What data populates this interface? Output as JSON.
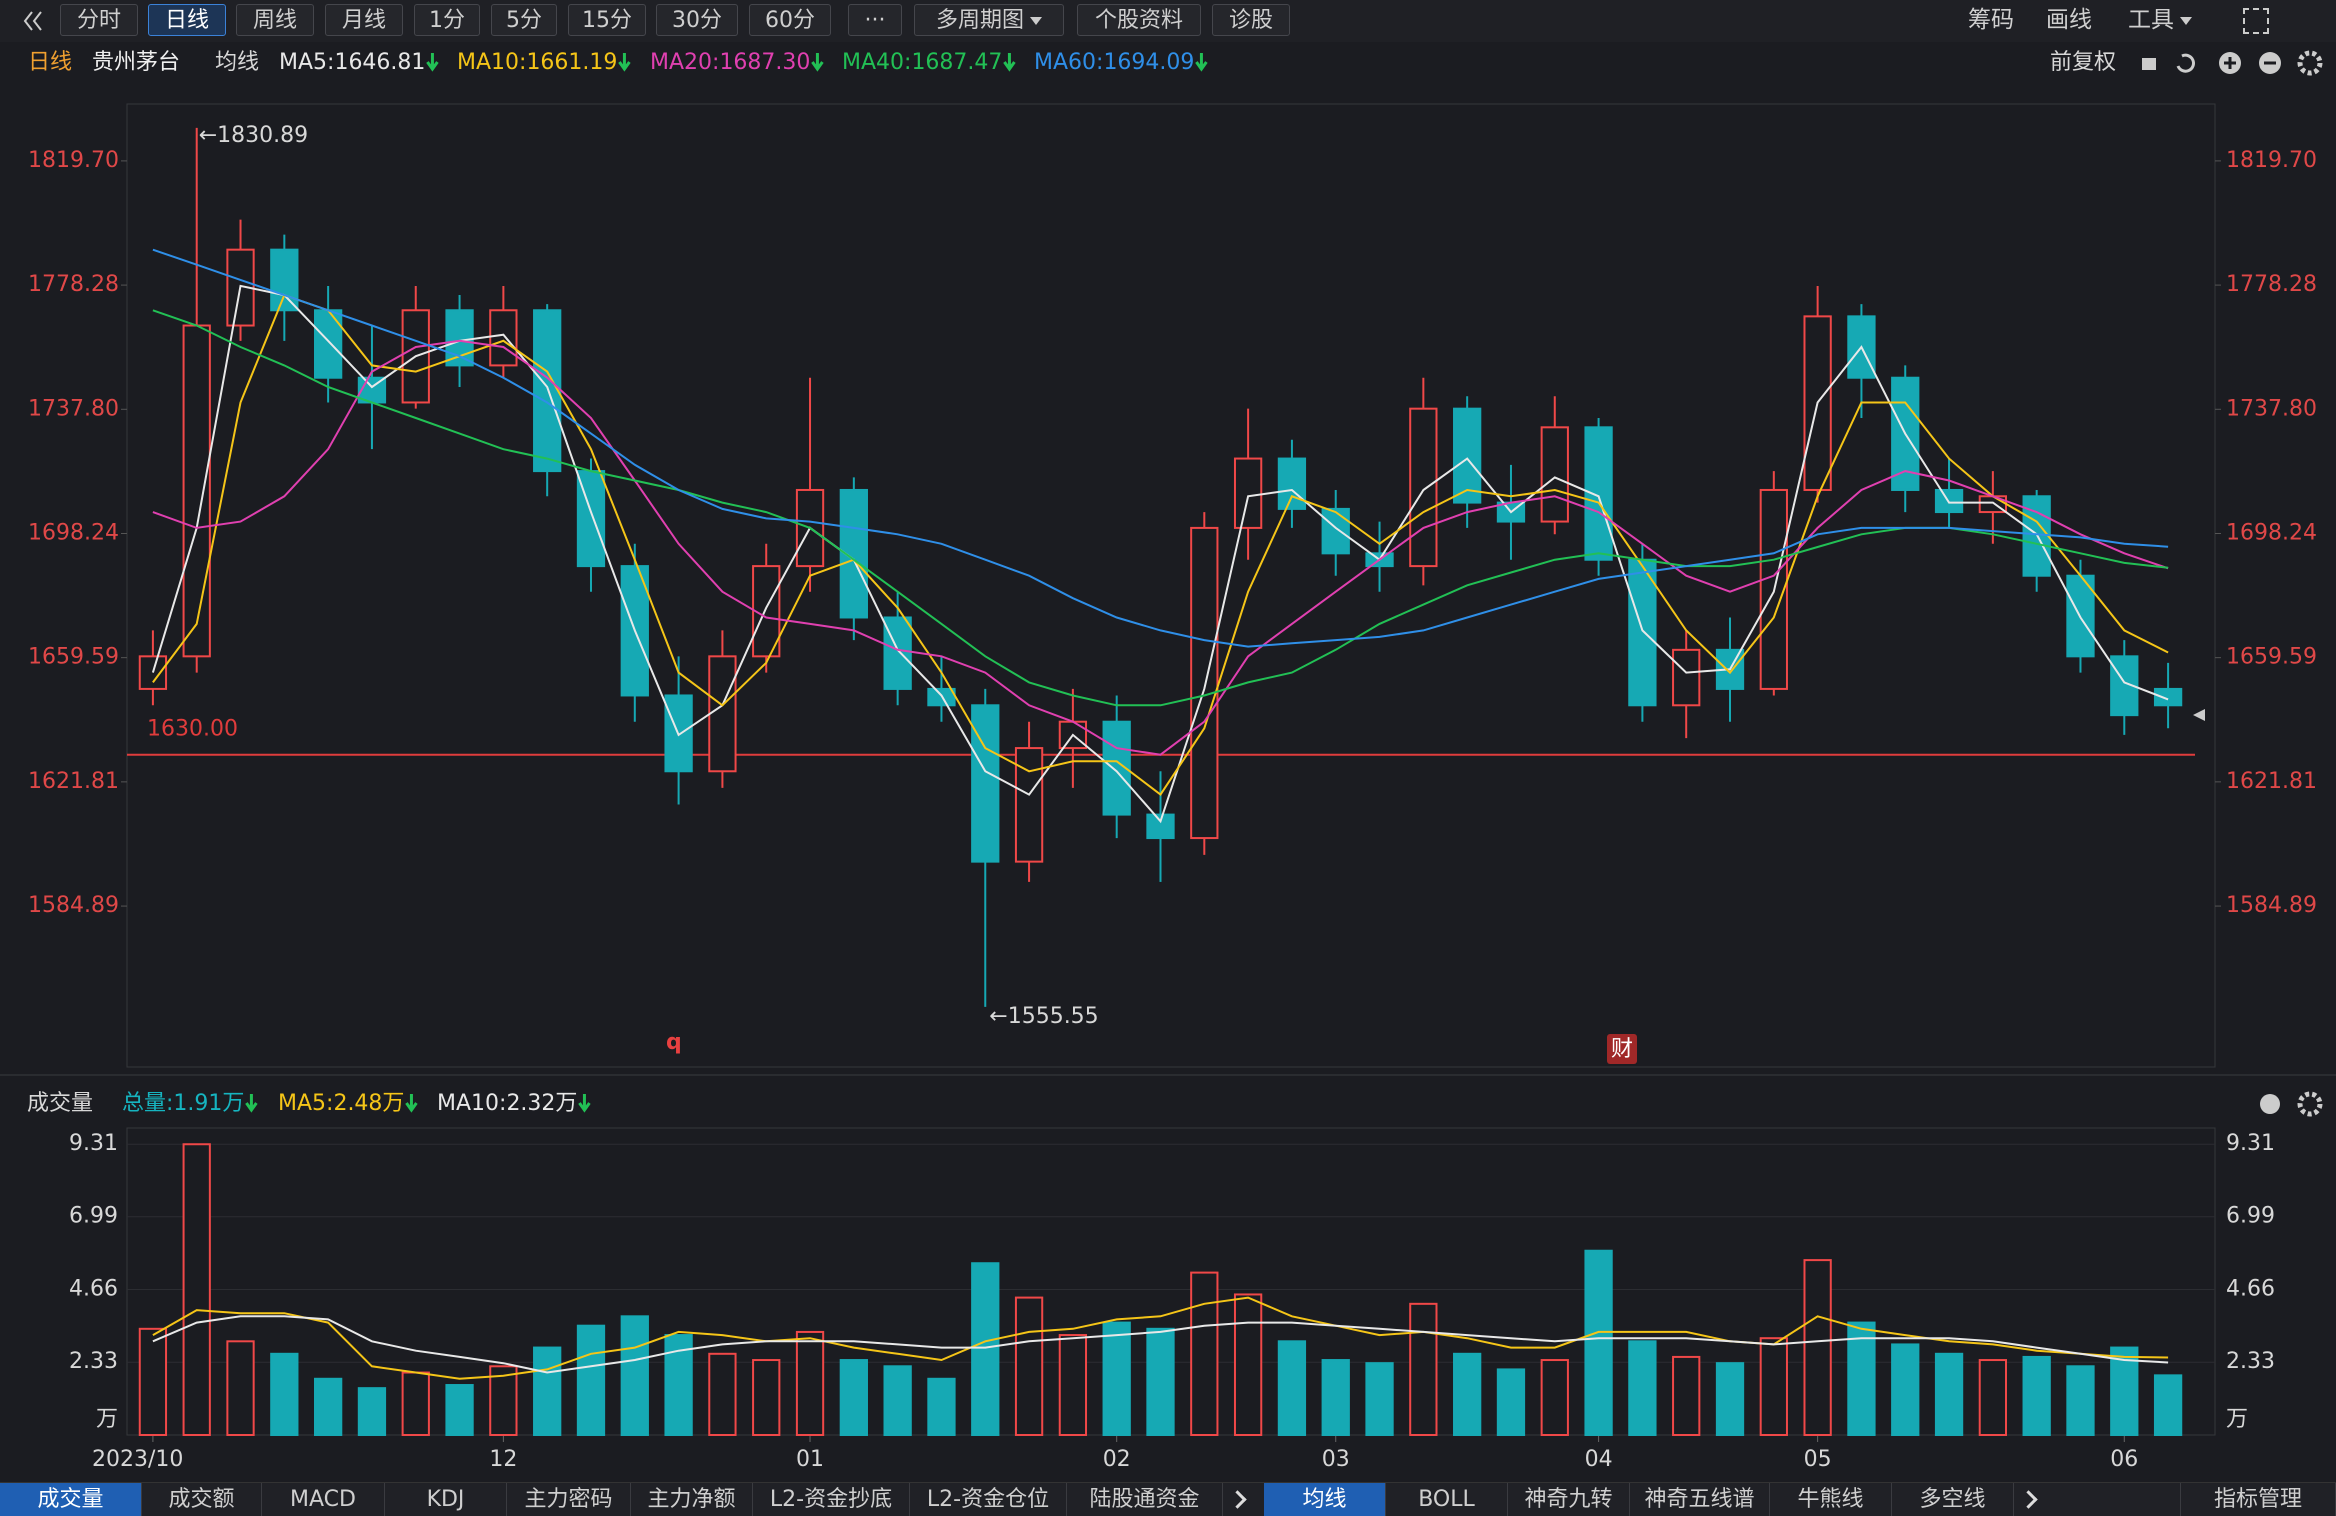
{
  "toolbar": {
    "items": [
      "分时",
      "日线",
      "周线",
      "月线",
      "1分",
      "5分",
      "15分",
      "30分",
      "60分",
      "···",
      "多周期图",
      "个股资料",
      "诊股"
    ],
    "selected": 1,
    "right": [
      "筹码",
      "画线",
      "工具"
    ]
  },
  "chart_data": [
    {
      "type": "candlestick",
      "period": "日线",
      "title": "贵州茅台",
      "ma_title": "均线",
      "adjust": "前复权",
      "categories": [
        "2023/10",
        null,
        null,
        null,
        null,
        null,
        null,
        null,
        "12",
        null,
        null,
        null,
        null,
        null,
        null,
        "01",
        null,
        null,
        null,
        null,
        null,
        null,
        "02",
        null,
        null,
        null,
        null,
        "03",
        null,
        null,
        null,
        null,
        null,
        "04",
        null,
        null,
        null,
        null,
        "05",
        null,
        null,
        null,
        null,
        null,
        null,
        "06",
        null
      ],
      "open": [
        1650,
        1660,
        1765,
        1790,
        1770,
        1748,
        1740,
        1770,
        1752,
        1770,
        1718,
        1688,
        1648,
        1625,
        1660,
        1688,
        1712,
        1672,
        1650,
        1645,
        1598,
        1632,
        1640,
        1612,
        1605,
        1700,
        1722,
        1706,
        1692,
        1688,
        1738,
        1708,
        1702,
        1732,
        1690,
        1645,
        1662,
        1650,
        1712,
        1768,
        1748,
        1712,
        1705,
        1710,
        1685,
        1660,
        1650
      ],
      "high": [
        1668,
        1830.89,
        1800,
        1795,
        1778,
        1765,
        1778,
        1775,
        1778,
        1772,
        1722,
        1695,
        1660,
        1668,
        1695,
        1748,
        1716,
        1680,
        1660,
        1650,
        1640,
        1650,
        1648,
        1625,
        1705,
        1738,
        1728,
        1712,
        1702,
        1748,
        1742,
        1720,
        1742,
        1735,
        1695,
        1668,
        1672,
        1718,
        1778,
        1772,
        1752,
        1722,
        1718,
        1712,
        1690,
        1665,
        1658
      ],
      "low": [
        1645,
        1655,
        1760,
        1760,
        1740,
        1725,
        1738,
        1745,
        1748,
        1710,
        1680,
        1640,
        1615,
        1620,
        1655,
        1680,
        1665,
        1645,
        1640,
        1555.55,
        1592,
        1620,
        1605,
        1592,
        1600,
        1690,
        1700,
        1685,
        1680,
        1682,
        1700,
        1690,
        1698,
        1685,
        1640,
        1635,
        1640,
        1648,
        1708,
        1735,
        1705,
        1700,
        1695,
        1680,
        1655,
        1636,
        1638
      ],
      "close": [
        1660,
        1765,
        1790,
        1770,
        1748,
        1740,
        1770,
        1752,
        1770,
        1718,
        1688,
        1648,
        1625,
        1660,
        1688,
        1712,
        1672,
        1650,
        1645,
        1598,
        1632,
        1640,
        1612,
        1605,
        1700,
        1722,
        1706,
        1692,
        1688,
        1738,
        1708,
        1702,
        1732,
        1690,
        1645,
        1662,
        1650,
        1712,
        1768,
        1748,
        1712,
        1705,
        1710,
        1685,
        1660,
        1642,
        1645
      ],
      "up_color": "#f04848",
      "down_color": "#16a9b4",
      "series": [
        {
          "name": "MA5",
          "label": "MA5:1646.81",
          "color": "#e8e8e8",
          "values": [
            1655,
            1700,
            1778,
            1775,
            1760,
            1745,
            1755,
            1760,
            1762,
            1745,
            1705,
            1668,
            1636,
            1645,
            1675,
            1700,
            1690,
            1662,
            1648,
            1625,
            1618,
            1636,
            1625,
            1610,
            1650,
            1710,
            1712,
            1700,
            1690,
            1712,
            1722,
            1705,
            1716,
            1710,
            1668,
            1655,
            1656,
            1680,
            1740,
            1758,
            1730,
            1708,
            1708,
            1698,
            1672,
            1652,
            1646.81
          ]
        },
        {
          "name": "MA10",
          "label": "MA10:1661.19",
          "color": "#f5c518",
          "values": [
            1652,
            1670,
            1740,
            1775,
            1770,
            1752,
            1750,
            1755,
            1760,
            1750,
            1725,
            1690,
            1655,
            1645,
            1658,
            1685,
            1690,
            1675,
            1655,
            1632,
            1625,
            1628,
            1628,
            1618,
            1638,
            1680,
            1710,
            1705,
            1695,
            1705,
            1712,
            1710,
            1712,
            1708,
            1688,
            1668,
            1655,
            1672,
            1710,
            1740,
            1740,
            1722,
            1710,
            1702,
            1685,
            1668,
            1661.19
          ]
        },
        {
          "name": "MA20",
          "label": "MA20:1687.30",
          "color": "#e040b0",
          "values": [
            1705,
            1700,
            1702,
            1710,
            1725,
            1750,
            1758,
            1760,
            1758,
            1748,
            1735,
            1715,
            1695,
            1680,
            1672,
            1670,
            1668,
            1662,
            1660,
            1655,
            1645,
            1640,
            1632,
            1630,
            1640,
            1660,
            1670,
            1680,
            1690,
            1700,
            1705,
            1708,
            1710,
            1705,
            1695,
            1685,
            1680,
            1685,
            1700,
            1712,
            1718,
            1715,
            1710,
            1705,
            1698,
            1692,
            1687.3
          ]
        },
        {
          "name": "MA40",
          "label": "MA40:1687.47",
          "color": "#22c055",
          "values": [
            1770,
            1765,
            1758,
            1752,
            1745,
            1740,
            1735,
            1730,
            1725,
            1722,
            1718,
            1715,
            1712,
            1708,
            1705,
            1700,
            1690,
            1680,
            1670,
            1660,
            1652,
            1648,
            1645,
            1645,
            1648,
            1652,
            1655,
            1662,
            1670,
            1676,
            1682,
            1686,
            1690,
            1692,
            1690,
            1688,
            1688,
            1690,
            1694,
            1698,
            1700,
            1700,
            1698,
            1695,
            1692,
            1689,
            1687.47
          ]
        },
        {
          "name": "MA60",
          "label": "MA60:1694.09",
          "color": "#2f8fe8",
          "values": [
            1790,
            1785,
            1780,
            1775,
            1770,
            1765,
            1760,
            1755,
            1748,
            1740,
            1730,
            1720,
            1712,
            1706,
            1703,
            1702,
            1700,
            1698,
            1695,
            1690,
            1685,
            1678,
            1672,
            1668,
            1665,
            1663,
            1664,
            1665,
            1666,
            1668,
            1672,
            1676,
            1680,
            1684,
            1686,
            1688,
            1690,
            1692,
            1698,
            1700,
            1700,
            1700,
            1699,
            1698,
            1697,
            1695,
            1694.09
          ]
        }
      ],
      "log": true,
      "ylim": [
        1538.3,
        1839.0
      ],
      "yticks": [
        1584.89,
        1621.81,
        1659.59,
        1698.24,
        {
          "value": 1737.8,
          "label": "1737.80"
        },
        1778.28,
        {
          "value": 1819.7,
          "label": "1819.70"
        }
      ],
      "high_note": {
        "value": 1830.89,
        "label": "←1830.89"
      },
      "low_note": {
        "value": 1555.55,
        "label": "←1555.55"
      },
      "hline": {
        "value": 1630,
        "label": "1630.00",
        "color": "#e03c3c"
      },
      "events": [
        "q",
        "财"
      ]
    },
    {
      "type": "bar",
      "title": "成交量",
      "value_label": "总量:1.91万",
      "values": [
        3.4,
        9.31,
        3.0,
        2.6,
        1.8,
        1.5,
        2.0,
        1.6,
        2.2,
        2.8,
        3.5,
        3.8,
        3.2,
        2.6,
        2.4,
        3.3,
        2.4,
        2.2,
        1.8,
        5.5,
        4.4,
        3.2,
        3.6,
        3.4,
        5.2,
        4.5,
        3.0,
        2.4,
        2.3,
        4.2,
        2.6,
        2.1,
        2.4,
        5.9,
        3.0,
        2.5,
        2.3,
        3.1,
        5.6,
        3.6,
        2.9,
        2.6,
        2.4,
        2.5,
        2.2,
        2.8,
        1.91
      ],
      "series": [
        {
          "name": "MA5",
          "label": "MA5:2.48万",
          "color": "#f5c518",
          "values": [
            3.2,
            4.0,
            3.9,
            3.9,
            3.6,
            2.2,
            2.0,
            1.8,
            1.9,
            2.1,
            2.6,
            2.8,
            3.3,
            3.2,
            3.0,
            3.1,
            2.8,
            2.6,
            2.4,
            3.0,
            3.3,
            3.4,
            3.7,
            3.8,
            4.2,
            4.4,
            3.8,
            3.5,
            3.2,
            3.3,
            3.1,
            2.8,
            2.8,
            3.3,
            3.3,
            3.3,
            3.0,
            2.9,
            3.8,
            3.4,
            3.2,
            3.0,
            2.9,
            2.7,
            2.6,
            2.5,
            2.48
          ]
        },
        {
          "name": "MA10",
          "label": "MA10:2.32万",
          "color": "#e8e8e8",
          "values": [
            3.0,
            3.6,
            3.8,
            3.8,
            3.7,
            3.0,
            2.7,
            2.5,
            2.3,
            2.0,
            2.2,
            2.4,
            2.7,
            2.9,
            3.0,
            3.0,
            3.0,
            2.9,
            2.8,
            2.8,
            3.0,
            3.1,
            3.2,
            3.3,
            3.5,
            3.6,
            3.6,
            3.5,
            3.4,
            3.3,
            3.2,
            3.1,
            3.0,
            3.1,
            3.1,
            3.1,
            3.0,
            2.9,
            3.0,
            3.1,
            3.1,
            3.1,
            3.0,
            2.8,
            2.6,
            2.4,
            2.32
          ]
        }
      ],
      "ylim": [
        0,
        9.83
      ],
      "yticks": [
        2.33,
        4.66,
        6.99,
        9.31
      ],
      "unit_label": "万"
    }
  ],
  "bottom_tabs": {
    "left": [
      "成交量",
      "成交额",
      "MACD",
      "KDJ",
      "主力密码",
      "主力净额",
      "L2-资金抄底",
      "L2-资金仓位",
      "陆股通资金"
    ],
    "left_selected": 0,
    "right": [
      "均线",
      "BOLL",
      "神奇九转",
      "神奇五线谱",
      "牛熊线",
      "多空线"
    ],
    "right_selected": 0,
    "manage": "指标管理"
  }
}
